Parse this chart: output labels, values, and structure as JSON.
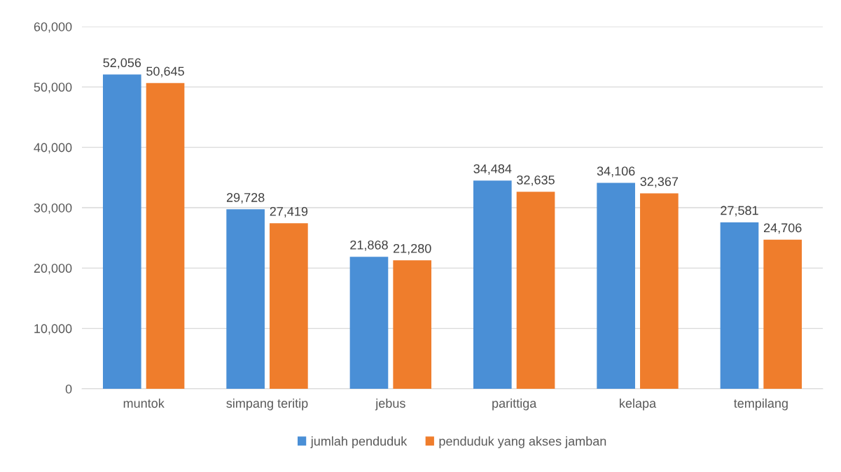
{
  "chart_data": {
    "type": "bar",
    "categories": [
      "muntok",
      "simpang teritip",
      "jebus",
      "parittiga",
      "kelapa",
      "tempilang"
    ],
    "series": [
      {
        "name": "jumlah penduduk",
        "color": "#4a8fd6",
        "values": [
          52056,
          29728,
          21868,
          34484,
          34106,
          27581
        ],
        "value_labels": [
          "52,056",
          "29,728",
          "21,868",
          "34,484",
          "34,106",
          "27,581"
        ]
      },
      {
        "name": "penduduk yang akses jamban",
        "color": "#ef7d2c",
        "values": [
          50645,
          27419,
          21280,
          32635,
          32367,
          24706
        ],
        "value_labels": [
          "50,645",
          "27,419",
          "21,280",
          "32,635",
          "32,367",
          "24,706"
        ]
      }
    ],
    "ylim": [
      0,
      60000
    ],
    "yticks": [
      {
        "value": 0,
        "label": "0"
      },
      {
        "value": 10000,
        "label": "10,000"
      },
      {
        "value": 20000,
        "label": "20,000"
      },
      {
        "value": 30000,
        "label": "30,000"
      },
      {
        "value": 40000,
        "label": "40,000"
      },
      {
        "value": 50000,
        "label": "50,000"
      },
      {
        "value": 60000,
        "label": "60,000"
      }
    ],
    "grid": "y",
    "legend": "bottom"
  }
}
